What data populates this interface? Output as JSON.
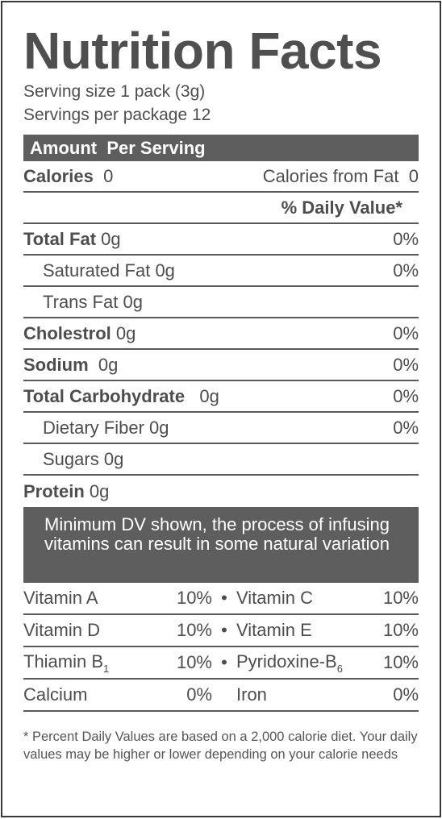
{
  "title": "Nutrition Facts",
  "serving_size": "Serving size 1 pack (3g)",
  "servings_per_package": "Servings per package 12",
  "amount_header": "Amount  Per Serving",
  "calories": {
    "label": "Calories",
    "value": "0",
    "from_fat_label": "Calories from Fat",
    "from_fat_value": "0"
  },
  "daily_value_header": "% Daily Value*",
  "nutrients": [
    {
      "label": "Total Fat",
      "amount": "0g",
      "dv": "0%"
    },
    {
      "label": "Saturated Fat",
      "amount": "0g",
      "dv": "0%"
    },
    {
      "label": "Trans Fat",
      "amount": "0g",
      "dv": ""
    },
    {
      "label": "Cholestrol",
      "amount": "0g",
      "dv": "0%"
    },
    {
      "label": "Sodium",
      "amount": "0g",
      "dv": "0%"
    },
    {
      "label": "Total Carbohydrate",
      "amount": "0g",
      "dv": "0%"
    },
    {
      "label": "Dietary Fiber",
      "amount": "0g",
      "dv": "0%"
    },
    {
      "label": "Sugars",
      "amount": "0g",
      "dv": ""
    },
    {
      "label": "Protein",
      "amount": "0g",
      "dv": ""
    }
  ],
  "note": "Minimum DV shown, the process of infusing vitamins can result in some natural variation",
  "vitamins": [
    {
      "left_name": "Vitamin A",
      "left_dv": "10%",
      "separator": "•",
      "right_name": "Vitamin C",
      "right_dv": "10%"
    },
    {
      "left_name": "Vitamin D",
      "left_dv": "10%",
      "separator": "•",
      "right_name": "Vitamin E",
      "right_dv": "10%"
    },
    {
      "left_name": "Thiamin B",
      "left_sub": "1",
      "left_dv": "10%",
      "separator": "•",
      "right_name": "Pyridoxine-B",
      "right_sub": "6",
      "right_dv": "10%"
    },
    {
      "left_name": "Calcium",
      "left_dv": "0%",
      "separator": "",
      "right_name": "Iron",
      "right_dv": "0%"
    }
  ],
  "footnote": "* Percent Daily Values are based on a 2,000 calorie diet. Your daily values may be higher or lower depending on your calorie needs"
}
